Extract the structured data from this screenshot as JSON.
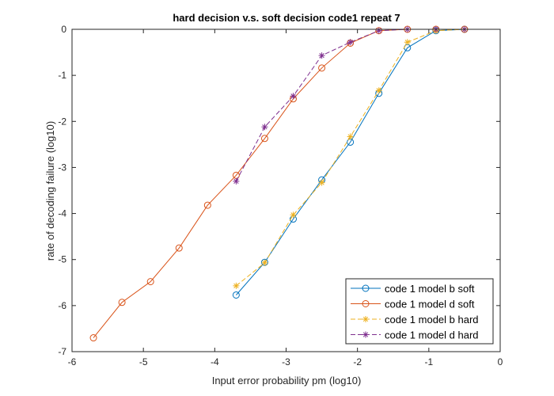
{
  "chart_data": {
    "type": "line",
    "title": "hard decision v.s. soft decision code1 repeat 7",
    "xlabel": "Input error probability pm (log10)",
    "ylabel": "rate of decoding failure (log10)",
    "xlim": [
      -6,
      0
    ],
    "ylim": [
      -7,
      0
    ],
    "xticks": [
      "-6",
      "-5",
      "-4",
      "-3",
      "-2",
      "-1",
      "0"
    ],
    "yticks": [
      "-7",
      "-6",
      "-5",
      "-4",
      "-3",
      "-2",
      "-1",
      "0"
    ],
    "grid": false,
    "legend_position": "bottom-right",
    "series": [
      {
        "name": "code 1 model b soft",
        "color": "#0072BD",
        "marker": "circle",
        "line": "solid",
        "x": [
          -3.7,
          -3.3,
          -2.9,
          -2.5,
          -2.1,
          -1.7,
          -1.3,
          -0.9,
          -0.5
        ],
        "y": [
          -5.77,
          -5.06,
          -4.12,
          -3.27,
          -2.45,
          -1.39,
          -0.4,
          -0.03,
          0
        ]
      },
      {
        "name": "code 1 model d soft",
        "color": "#D95319",
        "marker": "circle",
        "line": "solid",
        "x": [
          -5.7,
          -5.3,
          -4.9,
          -4.5,
          -4.1,
          -3.7,
          -3.3,
          -2.9,
          -2.5,
          -2.1,
          -1.7,
          -1.3,
          -0.9,
          -0.5
        ],
        "y": [
          -6.7,
          -5.93,
          -5.48,
          -4.75,
          -3.82,
          -3.17,
          -2.37,
          -1.51,
          -0.84,
          -0.3,
          -0.03,
          0,
          0,
          0
        ]
      },
      {
        "name": "code 1 model b hard",
        "color": "#EDB120",
        "marker": "asterisk",
        "line": "dashed",
        "x": [
          -3.7,
          -3.3,
          -2.9,
          -2.5,
          -2.1,
          -1.7,
          -1.3,
          -0.9,
          -0.5
        ],
        "y": [
          -5.57,
          -5.07,
          -4.03,
          -3.33,
          -2.33,
          -1.33,
          -0.28,
          -0.03,
          0
        ]
      },
      {
        "name": "code 1 model d hard",
        "color": "#7E2F8E",
        "marker": "asterisk",
        "line": "dashed",
        "x": [
          -3.7,
          -3.3,
          -2.9,
          -2.5,
          -2.1,
          -1.7,
          -1.3,
          -0.9,
          -0.5
        ],
        "y": [
          -3.3,
          -2.12,
          -1.45,
          -0.57,
          -0.28,
          -0.03,
          0,
          0,
          0
        ]
      }
    ]
  }
}
